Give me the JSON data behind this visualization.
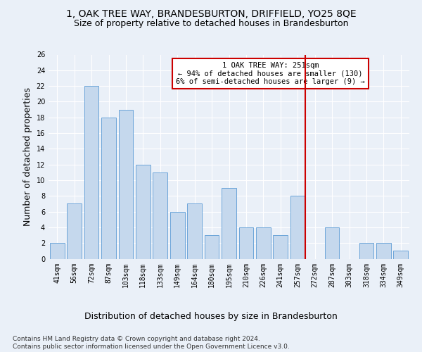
{
  "title": "1, OAK TREE WAY, BRANDESBURTON, DRIFFIELD, YO25 8QE",
  "subtitle": "Size of property relative to detached houses in Brandesburton",
  "xlabel": "Distribution of detached houses by size in Brandesburton",
  "ylabel": "Number of detached properties",
  "categories": [
    "41sqm",
    "56sqm",
    "72sqm",
    "87sqm",
    "103sqm",
    "118sqm",
    "133sqm",
    "149sqm",
    "164sqm",
    "180sqm",
    "195sqm",
    "210sqm",
    "226sqm",
    "241sqm",
    "257sqm",
    "272sqm",
    "287sqm",
    "303sqm",
    "318sqm",
    "334sqm",
    "349sqm"
  ],
  "values": [
    2,
    7,
    22,
    18,
    19,
    12,
    11,
    6,
    7,
    3,
    9,
    4,
    4,
    3,
    8,
    0,
    4,
    0,
    2,
    2,
    1
  ],
  "bar_color": "#c5d8ed",
  "bar_edge_color": "#5b9bd5",
  "vline_x_index": 14.43,
  "vline_color": "#cc0000",
  "annotation_text": "1 OAK TREE WAY: 251sqm\n← 94% of detached houses are smaller (130)\n6% of semi-detached houses are larger (9) →",
  "annotation_box_color": "#ffffff",
  "annotation_box_edge": "#cc0000",
  "ylim": [
    0,
    26
  ],
  "yticks": [
    0,
    2,
    4,
    6,
    8,
    10,
    12,
    14,
    16,
    18,
    20,
    22,
    24,
    26
  ],
  "footer": "Contains HM Land Registry data © Crown copyright and database right 2024.\nContains public sector information licensed under the Open Government Licence v3.0.",
  "bg_color": "#eaf0f8",
  "plot_bg_color": "#eaf0f8",
  "grid_color": "#ffffff",
  "title_fontsize": 10,
  "subtitle_fontsize": 9,
  "axis_label_fontsize": 9,
  "tick_fontsize": 7,
  "footer_fontsize": 6.5,
  "ann_fontsize": 7.5
}
